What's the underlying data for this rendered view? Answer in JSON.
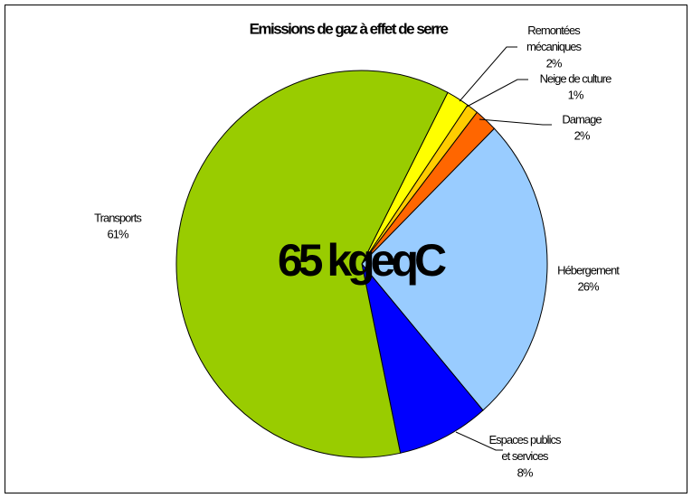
{
  "chart_data": {
    "type": "pie",
    "title": "Emissions de gaz à effet de serre",
    "annotation": "65 kgeqC",
    "categories": [
      "Remontées mécaniques",
      "Neige de culture",
      "Damage",
      "Hébergement",
      "Espaces publics et services",
      "Transports"
    ],
    "values": [
      2,
      1,
      2,
      26,
      8,
      61
    ],
    "value_labels": [
      "2%",
      "1%",
      "2%",
      "26%",
      "8%",
      "61%"
    ],
    "colors": [
      "#ffff00",
      "#ffcc00",
      "#ff6600",
      "#99ccff",
      "#0000ff",
      "#99cc00"
    ]
  }
}
